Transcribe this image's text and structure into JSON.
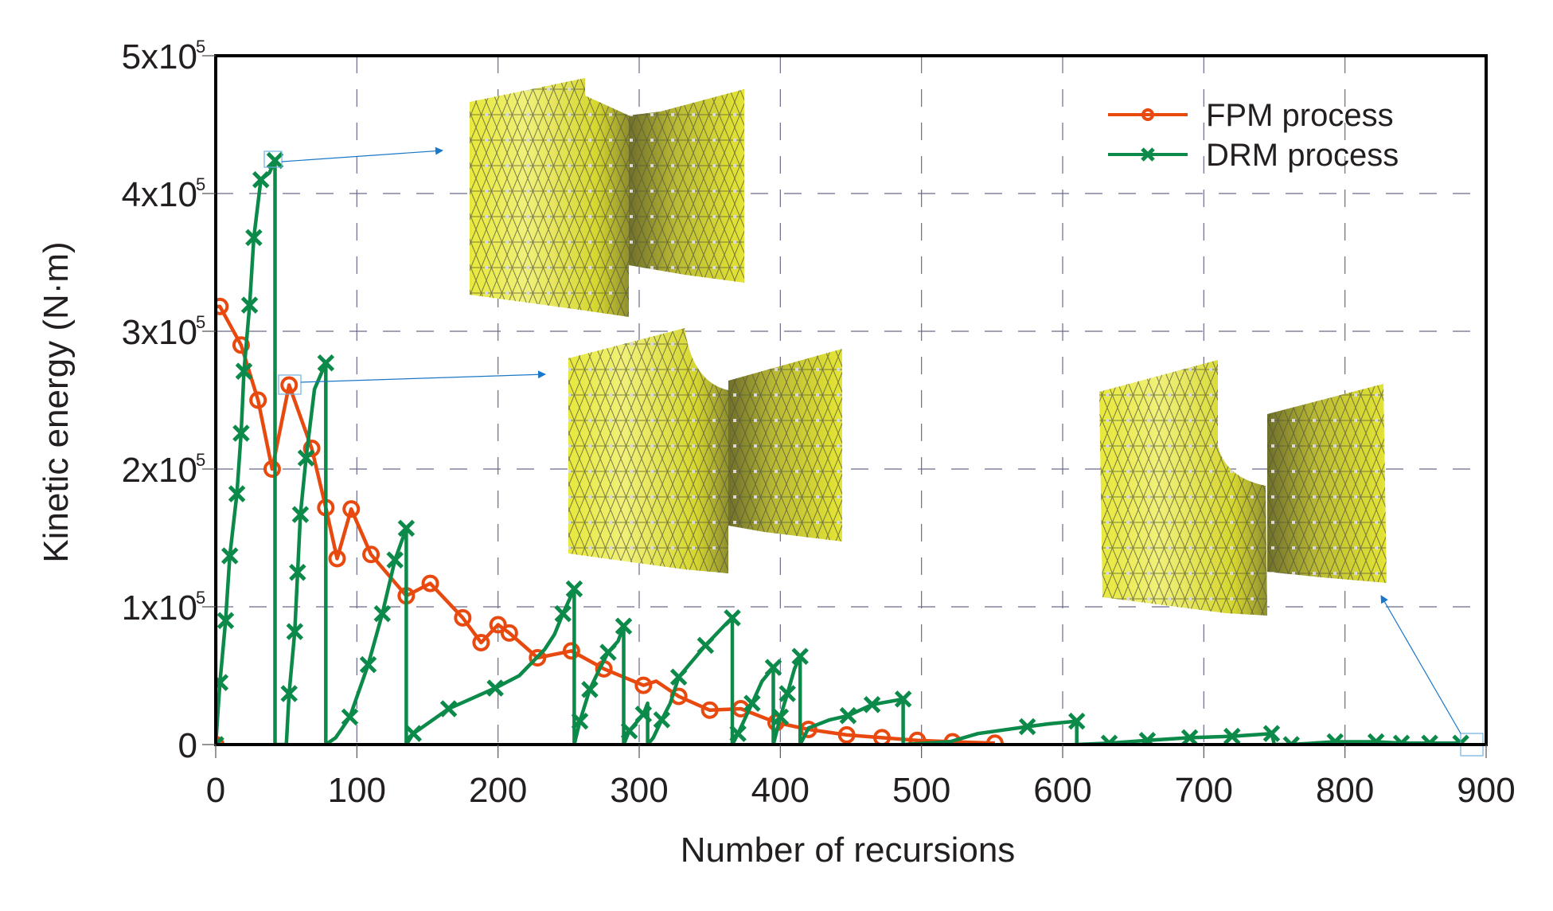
{
  "chart_data": {
    "type": "line",
    "title": "",
    "xlabel": "Number of recursions",
    "ylabel": "Kinetic energy (N·m)",
    "xlim": [
      0,
      900
    ],
    "ylim": [
      0,
      500000
    ],
    "grid": true,
    "legend_position": "top-right",
    "x_ticks": [
      0,
      100,
      200,
      300,
      400,
      500,
      600,
      700,
      800,
      900
    ],
    "x_tick_labels": [
      "0",
      "100",
      "200",
      "300",
      "400",
      "500",
      "600",
      "700",
      "800",
      "900"
    ],
    "y_ticks": [
      0,
      100000,
      200000,
      300000,
      400000,
      500000
    ],
    "y_tick_labels": [
      {
        "mantissa": "0",
        "exp": ""
      },
      {
        "mantissa": "1x10",
        "exp": "5"
      },
      {
        "mantissa": "2x10",
        "exp": "5"
      },
      {
        "mantissa": "3x10",
        "exp": "5"
      },
      {
        "mantissa": "4x10",
        "exp": "5"
      },
      {
        "mantissa": "5x10",
        "exp": "5"
      }
    ],
    "series": [
      {
        "name": "FPM process",
        "color": "#e8490f",
        "marker": "circle",
        "points": [
          [
            0,
            0
          ],
          [
            0,
            318000
          ],
          [
            3,
            318000
          ],
          [
            18,
            290000
          ],
          [
            30,
            250000
          ],
          [
            40,
            200000
          ],
          [
            52,
            261000
          ],
          [
            68,
            215000
          ],
          [
            78,
            172000
          ],
          [
            86,
            135000
          ],
          [
            96,
            171000
          ],
          [
            110,
            138000
          ],
          [
            135,
            108000
          ],
          [
            152,
            117000
          ],
          [
            175,
            92000
          ],
          [
            188,
            74000
          ],
          [
            200,
            87000
          ],
          [
            208,
            81000
          ],
          [
            228,
            63000
          ],
          [
            252,
            68000
          ],
          [
            275,
            55000
          ],
          [
            303,
            43000
          ],
          [
            312,
            46000
          ],
          [
            328,
            35000
          ],
          [
            350,
            25000
          ],
          [
            372,
            26000
          ],
          [
            397,
            16000
          ],
          [
            420,
            11000
          ],
          [
            447,
            7000
          ],
          [
            472,
            5000
          ],
          [
            497,
            3000
          ],
          [
            522,
            2000
          ],
          [
            552,
            1000
          ]
        ],
        "markers": [
          [
            0,
            0
          ],
          [
            3,
            318000
          ],
          [
            18,
            290000
          ],
          [
            30,
            250000
          ],
          [
            40,
            200000
          ],
          [
            52,
            261000
          ],
          [
            68,
            215000
          ],
          [
            78,
            172000
          ],
          [
            86,
            135000
          ],
          [
            96,
            171000
          ],
          [
            110,
            138000
          ],
          [
            135,
            108000
          ],
          [
            152,
            117000
          ],
          [
            175,
            92000
          ],
          [
            188,
            74000
          ],
          [
            200,
            87000
          ],
          [
            208,
            81000
          ],
          [
            228,
            63000
          ],
          [
            252,
            68000
          ],
          [
            275,
            55000
          ],
          [
            303,
            43000
          ],
          [
            328,
            35000
          ],
          [
            350,
            25000
          ],
          [
            372,
            26000
          ],
          [
            397,
            16000
          ],
          [
            420,
            11000
          ],
          [
            447,
            7000
          ],
          [
            472,
            5000
          ],
          [
            497,
            3000
          ],
          [
            522,
            2000
          ],
          [
            552,
            1000
          ]
        ]
      },
      {
        "name": "DRM process",
        "color": "#0c8a4a",
        "marker": "x",
        "points": [
          [
            0,
            0
          ],
          [
            3,
            45000
          ],
          [
            7,
            90000
          ],
          [
            10,
            137000
          ],
          [
            15,
            182000
          ],
          [
            18,
            226000
          ],
          [
            20,
            271000
          ],
          [
            24,
            319000
          ],
          [
            27,
            368000
          ],
          [
            32,
            410000
          ],
          [
            38,
            415000
          ],
          [
            42,
            424000
          ],
          [
            42,
            0
          ],
          [
            50,
            0
          ],
          [
            52,
            37000
          ],
          [
            56,
            82000
          ],
          [
            58,
            125000
          ],
          [
            60,
            167000
          ],
          [
            64,
            208000
          ],
          [
            70,
            258000
          ],
          [
            78,
            277000
          ],
          [
            78,
            0
          ],
          [
            85,
            5000
          ],
          [
            95,
            20000
          ],
          [
            108,
            58000
          ],
          [
            118,
            95000
          ],
          [
            127,
            134000
          ],
          [
            135,
            157000
          ],
          [
            135,
            0
          ],
          [
            140,
            8000
          ],
          [
            165,
            26000
          ],
          [
            198,
            41000
          ],
          [
            215,
            50000
          ],
          [
            233,
            69000
          ],
          [
            240,
            80000
          ],
          [
            246,
            95000
          ],
          [
            254,
            113000
          ],
          [
            254,
            0
          ],
          [
            258,
            17000
          ],
          [
            265,
            40000
          ],
          [
            272,
            55000
          ],
          [
            278,
            67000
          ],
          [
            285,
            75000
          ],
          [
            289,
            86000
          ],
          [
            289,
            0
          ],
          [
            293,
            10000
          ],
          [
            303,
            22000
          ],
          [
            306,
            30000
          ],
          [
            306,
            0
          ],
          [
            310,
            5000
          ],
          [
            316,
            18000
          ],
          [
            322,
            30000
          ],
          [
            328,
            49000
          ],
          [
            347,
            72000
          ],
          [
            360,
            86000
          ],
          [
            366,
            92000
          ],
          [
            366,
            0
          ],
          [
            370,
            8000
          ],
          [
            380,
            30000
          ],
          [
            387,
            46000
          ],
          [
            395,
            56000
          ],
          [
            395,
            0
          ],
          [
            400,
            20000
          ],
          [
            405,
            37000
          ],
          [
            410,
            55000
          ],
          [
            414,
            64000
          ],
          [
            414,
            0
          ],
          [
            420,
            12000
          ],
          [
            435,
            18000
          ],
          [
            448,
            21000
          ],
          [
            465,
            29000
          ],
          [
            487,
            33000
          ],
          [
            487,
            0
          ],
          [
            520,
            2000
          ],
          [
            540,
            8000
          ],
          [
            575,
            13000
          ],
          [
            590,
            15000
          ],
          [
            610,
            17000
          ],
          [
            610,
            0
          ],
          [
            633,
            1000
          ],
          [
            660,
            3000
          ],
          [
            690,
            5000
          ],
          [
            720,
            6000
          ],
          [
            748,
            8000
          ],
          [
            750,
            0
          ],
          [
            762,
            0
          ],
          [
            793,
            2000
          ],
          [
            822,
            2000
          ],
          [
            840,
            1000
          ],
          [
            860,
            1000
          ],
          [
            882,
            1000
          ]
        ],
        "markers": [
          [
            0,
            0
          ],
          [
            3,
            45000
          ],
          [
            7,
            90000
          ],
          [
            10,
            137000
          ],
          [
            15,
            182000
          ],
          [
            18,
            226000
          ],
          [
            20,
            271000
          ],
          [
            24,
            319000
          ],
          [
            27,
            368000
          ],
          [
            32,
            410000
          ],
          [
            42,
            424000
          ],
          [
            52,
            37000
          ],
          [
            56,
            82000
          ],
          [
            58,
            125000
          ],
          [
            60,
            167000
          ],
          [
            64,
            208000
          ],
          [
            78,
            277000
          ],
          [
            95,
            20000
          ],
          [
            108,
            58000
          ],
          [
            118,
            95000
          ],
          [
            127,
            134000
          ],
          [
            135,
            157000
          ],
          [
            140,
            8000
          ],
          [
            165,
            26000
          ],
          [
            198,
            41000
          ],
          [
            246,
            95000
          ],
          [
            254,
            113000
          ],
          [
            258,
            17000
          ],
          [
            265,
            40000
          ],
          [
            278,
            67000
          ],
          [
            289,
            86000
          ],
          [
            293,
            10000
          ],
          [
            303,
            22000
          ],
          [
            316,
            18000
          ],
          [
            328,
            49000
          ],
          [
            347,
            72000
          ],
          [
            366,
            92000
          ],
          [
            370,
            8000
          ],
          [
            380,
            30000
          ],
          [
            395,
            56000
          ],
          [
            400,
            20000
          ],
          [
            405,
            37000
          ],
          [
            414,
            64000
          ],
          [
            448,
            21000
          ],
          [
            465,
            29000
          ],
          [
            487,
            33000
          ],
          [
            575,
            13000
          ],
          [
            610,
            17000
          ],
          [
            633,
            1000
          ],
          [
            660,
            3000
          ],
          [
            690,
            5000
          ],
          [
            720,
            6000
          ],
          [
            748,
            8000
          ],
          [
            762,
            0
          ],
          [
            793,
            2000
          ],
          [
            822,
            2000
          ],
          [
            840,
            1000
          ],
          [
            860,
            1000
          ],
          [
            882,
            1000
          ]
        ]
      }
    ],
    "annotations": [
      {
        "type": "callout",
        "from_point": [
          42,
          424000
        ],
        "to": "mesh-1",
        "color": "#2a7fd4"
      },
      {
        "type": "callout",
        "from_point": [
          52,
          261000
        ],
        "to": "mesh-2",
        "color": "#2a7fd4"
      },
      {
        "type": "callout",
        "from_point": [
          890,
          1000
        ],
        "to": "mesh-3",
        "color": "#2a7fd4"
      }
    ],
    "inset_images": [
      {
        "name": "mesh-1",
        "description": "deformed yellow triangulated mesh surface (early stage)"
      },
      {
        "name": "mesh-2",
        "description": "deformed yellow triangulated mesh surface (intermediate stage)"
      },
      {
        "name": "mesh-3",
        "description": "deformed yellow triangulated mesh surface (final stage)"
      }
    ]
  }
}
